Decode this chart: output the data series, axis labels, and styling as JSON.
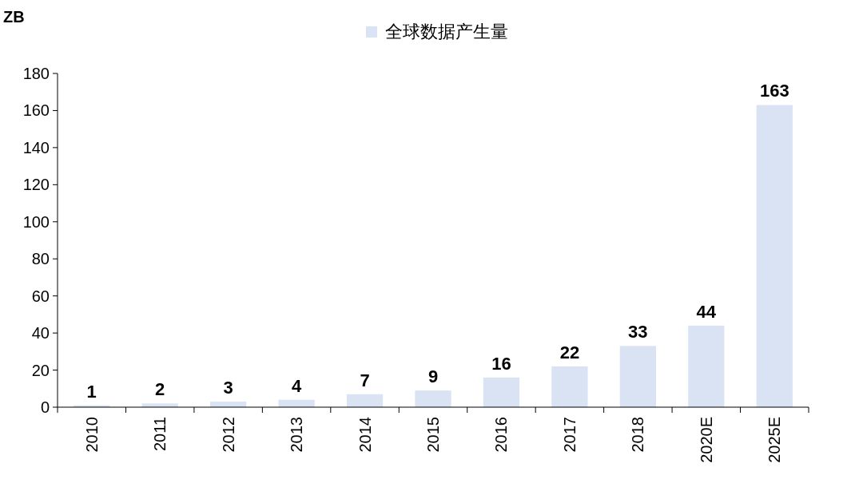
{
  "chart_data": {
    "type": "bar",
    "ylabel": "ZB",
    "categories": [
      "2010",
      "2011",
      "2012",
      "2013",
      "2014",
      "2015",
      "2016",
      "2017",
      "2018",
      "2020E",
      "2025E"
    ],
    "series": [
      {
        "name": "全球数据产生量",
        "color": "#dae3f3",
        "values": [
          1,
          2,
          3,
          4,
          7,
          9,
          16,
          22,
          33,
          44,
          163
        ]
      }
    ],
    "ylim": [
      0,
      180
    ],
    "yticks": [
      0,
      20,
      40,
      60,
      80,
      100,
      120,
      140,
      160,
      180
    ],
    "data_labels": true,
    "legend": "top"
  }
}
